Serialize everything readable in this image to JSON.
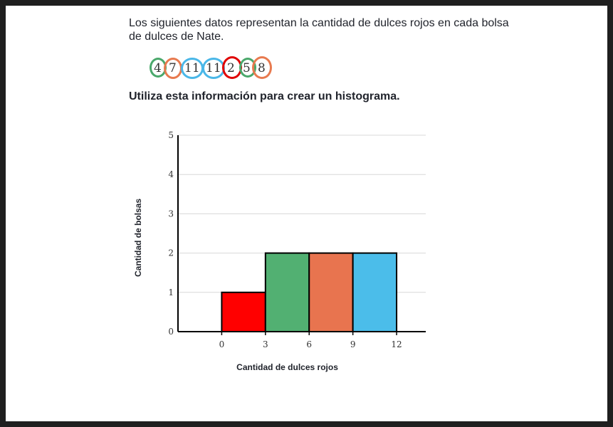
{
  "question": {
    "line1": "Los siguientes datos representan la cantidad de dulces rojos en cada bolsa",
    "line2": "de dulces de Nate."
  },
  "data_list": [
    "4",
    "7",
    "11",
    "11",
    "2",
    "5",
    "8"
  ],
  "instruction": "Utiliza esta información para crear un histograma.",
  "annotation_colors": {
    "green": "#4aa86b",
    "orange": "#e87a4f",
    "blue": "#4ab7e8",
    "red": "#e00000"
  },
  "chart_data": {
    "type": "bar",
    "title": "",
    "xlabel": "Cantidad de dulces rojos",
    "ylabel": "Cantidad de bolsas",
    "bins": [
      {
        "from": 0,
        "to": 3,
        "value": 1,
        "color": "#ff0000"
      },
      {
        "from": 3,
        "to": 6,
        "value": 2,
        "color": "#52b072"
      },
      {
        "from": 6,
        "to": 9,
        "value": 2,
        "color": "#e8744f"
      },
      {
        "from": 9,
        "to": 12,
        "value": 2,
        "color": "#4bbdea"
      }
    ],
    "xticks": [
      0,
      3,
      6,
      9,
      12
    ],
    "yticks": [
      0,
      1,
      2,
      3,
      4,
      5
    ],
    "xlim": [
      -3,
      14
    ],
    "ylim": [
      0,
      5
    ],
    "grid": true
  }
}
